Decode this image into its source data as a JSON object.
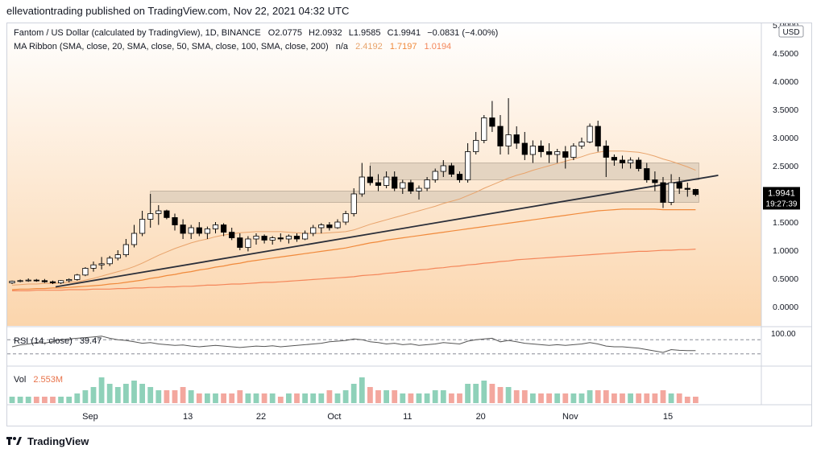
{
  "header": {
    "published": "ellevationtrading published on TradingView.com, Nov 22, 2021 04:32 UTC"
  },
  "legend": {
    "symbol_line": "Fantom / US Dollar (calculated by TradingView), 1D, BINANCE",
    "ohlc": [
      {
        "k": "O",
        "v": "2.0775"
      },
      {
        "k": "H",
        "v": "2.0932"
      },
      {
        "k": "L",
        "v": "1.9585"
      },
      {
        "k": "C",
        "v": "1.9941"
      }
    ],
    "change": "−0.0831 (−4.00%)",
    "ma_label": "MA Ribbon (SMA, close, 20, SMA, close, 50, SMA, close, 100, SMA, close, 200)",
    "ma_na": "n/a",
    "ma_values": [
      "2.4192",
      "1.7197",
      "1.0194"
    ],
    "rsi_label": "RSI (14, close)",
    "rsi_value": "39.47",
    "vol_label": "Vol",
    "vol_value": "2.553M"
  },
  "price_axis": {
    "currency": "USD",
    "ticks": [
      "5.0000",
      "4.5000",
      "4.0000",
      "3.5000",
      "3.0000",
      "2.5000",
      "2.0000",
      "1.5000",
      "1.0000",
      "0.5000",
      "0.0000"
    ],
    "last_price": "1.9941",
    "countdown": "19:27:39"
  },
  "rsi_axis": {
    "tick": "100.00"
  },
  "time_axis": {
    "labels": [
      "Sep",
      "13",
      "22",
      "Oct",
      "11",
      "20",
      "Nov",
      "15"
    ]
  },
  "footer": {
    "brand": "TradingView"
  },
  "colors": {
    "background_gradient_top": "#ffffff",
    "background_gradient_bottom": "#fbd5ac",
    "candle_up": "#ffffff",
    "candle_down": "#000000",
    "zone": "#d9cbb8",
    "trendline": "#2a2e39",
    "ma20": "#e8a36b",
    "ma50": "#f08a3c",
    "ma200": "#f4865a",
    "vol_up": "#8fd1b9",
    "vol_down": "#f3a79e",
    "price_label_bg": "#000000"
  },
  "chart_data": {
    "type": "candlestick",
    "ylim": [
      0,
      5
    ],
    "start_date": "2021-08-23",
    "end_date": "2021-11-22",
    "candles": [
      [
        0.42,
        0.46,
        0.4,
        0.45
      ],
      [
        0.45,
        0.48,
        0.43,
        0.46
      ],
      [
        0.46,
        0.5,
        0.44,
        0.47
      ],
      [
        0.47,
        0.49,
        0.44,
        0.46
      ],
      [
        0.46,
        0.49,
        0.42,
        0.44
      ],
      [
        0.44,
        0.46,
        0.4,
        0.42
      ],
      [
        0.42,
        0.47,
        0.4,
        0.46
      ],
      [
        0.46,
        0.5,
        0.43,
        0.48
      ],
      [
        0.48,
        0.58,
        0.46,
        0.56
      ],
      [
        0.56,
        0.7,
        0.54,
        0.68
      ],
      [
        0.68,
        0.8,
        0.62,
        0.74
      ],
      [
        0.74,
        0.88,
        0.66,
        0.76
      ],
      [
        0.76,
        0.9,
        0.72,
        0.86
      ],
      [
        0.86,
        1.0,
        0.82,
        0.92
      ],
      [
        0.92,
        1.2,
        0.88,
        1.1
      ],
      [
        1.1,
        1.45,
        1.05,
        1.3
      ],
      [
        1.3,
        1.7,
        1.25,
        1.55
      ],
      [
        1.55,
        2.0,
        1.4,
        1.65
      ],
      [
        1.65,
        1.8,
        1.45,
        1.7
      ],
      [
        1.7,
        1.72,
        1.55,
        1.58
      ],
      [
        1.58,
        1.65,
        1.35,
        1.45
      ],
      [
        1.45,
        1.55,
        1.2,
        1.3
      ],
      [
        1.3,
        1.45,
        1.2,
        1.4
      ],
      [
        1.4,
        1.5,
        1.25,
        1.3
      ],
      [
        1.3,
        1.42,
        1.2,
        1.38
      ],
      [
        1.38,
        1.5,
        1.3,
        1.45
      ],
      [
        1.45,
        1.48,
        1.25,
        1.32
      ],
      [
        1.32,
        1.4,
        1.18,
        1.22
      ],
      [
        1.22,
        1.3,
        1.0,
        1.05
      ],
      [
        1.05,
        1.25,
        0.98,
        1.2
      ],
      [
        1.2,
        1.3,
        1.1,
        1.25
      ],
      [
        1.25,
        1.28,
        1.12,
        1.18
      ],
      [
        1.18,
        1.25,
        1.1,
        1.22
      ],
      [
        1.22,
        1.3,
        1.15,
        1.2
      ],
      [
        1.2,
        1.28,
        1.12,
        1.25
      ],
      [
        1.25,
        1.3,
        1.15,
        1.2
      ],
      [
        1.2,
        1.35,
        1.18,
        1.3
      ],
      [
        1.3,
        1.45,
        1.25,
        1.4
      ],
      [
        1.4,
        1.48,
        1.3,
        1.45
      ],
      [
        1.45,
        1.5,
        1.35,
        1.4
      ],
      [
        1.4,
        1.55,
        1.38,
        1.5
      ],
      [
        1.5,
        1.7,
        1.45,
        1.65
      ],
      [
        1.65,
        2.1,
        1.6,
        2.0
      ],
      [
        2.0,
        2.55,
        1.95,
        2.3
      ],
      [
        2.3,
        2.5,
        2.15,
        2.2
      ],
      [
        2.2,
        2.35,
        2.05,
        2.15
      ],
      [
        2.15,
        2.4,
        2.1,
        2.3
      ],
      [
        2.3,
        2.4,
        2.05,
        2.1
      ],
      [
        2.1,
        2.25,
        2.0,
        2.2
      ],
      [
        2.2,
        2.25,
        2.0,
        2.05
      ],
      [
        2.05,
        2.15,
        1.9,
        2.1
      ],
      [
        2.1,
        2.3,
        2.05,
        2.25
      ],
      [
        2.25,
        2.45,
        2.2,
        2.4
      ],
      [
        2.4,
        2.6,
        2.3,
        2.5
      ],
      [
        2.5,
        2.55,
        2.3,
        2.35
      ],
      [
        2.35,
        2.4,
        2.2,
        2.25
      ],
      [
        2.25,
        2.9,
        2.2,
        2.75
      ],
      [
        2.75,
        3.1,
        2.7,
        2.95
      ],
      [
        2.95,
        3.4,
        2.9,
        3.35
      ],
      [
        3.35,
        3.65,
        3.1,
        3.2
      ],
      [
        3.2,
        3.4,
        2.7,
        2.85
      ],
      [
        2.85,
        3.7,
        2.7,
        3.05
      ],
      [
        3.05,
        3.2,
        2.8,
        2.9
      ],
      [
        2.9,
        3.1,
        2.6,
        2.7
      ],
      [
        2.7,
        2.95,
        2.55,
        2.85
      ],
      [
        2.85,
        2.95,
        2.65,
        2.75
      ],
      [
        2.75,
        2.9,
        2.55,
        2.7
      ],
      [
        2.7,
        2.8,
        2.55,
        2.75
      ],
      [
        2.75,
        2.85,
        2.45,
        2.65
      ],
      [
        2.65,
        2.9,
        2.6,
        2.85
      ],
      [
        2.85,
        3.0,
        2.8,
        2.92
      ],
      [
        2.92,
        3.25,
        2.9,
        3.2
      ],
      [
        3.2,
        3.3,
        2.75,
        2.85
      ],
      [
        2.85,
        2.95,
        2.3,
        2.65
      ],
      [
        2.65,
        2.7,
        2.5,
        2.6
      ],
      [
        2.6,
        2.68,
        2.45,
        2.55
      ],
      [
        2.55,
        2.65,
        2.45,
        2.6
      ],
      [
        2.6,
        2.65,
        2.4,
        2.45
      ],
      [
        2.45,
        2.55,
        2.2,
        2.25
      ],
      [
        2.25,
        2.4,
        2.05,
        2.2
      ],
      [
        2.2,
        2.3,
        1.75,
        1.85
      ],
      [
        1.85,
        2.35,
        1.8,
        2.2
      ],
      [
        2.2,
        2.3,
        2.0,
        2.1
      ],
      [
        2.1,
        2.2,
        1.95,
        2.08
      ],
      [
        2.08,
        2.09,
        1.96,
        1.99
      ]
    ],
    "volume": [
      2,
      2,
      2,
      2,
      2,
      2,
      2,
      2,
      3,
      4,
      5,
      8,
      6,
      5,
      6,
      7,
      6,
      5,
      4,
      4,
      4,
      5,
      4,
      3,
      3,
      3,
      3,
      3,
      4,
      3,
      3,
      3,
      3,
      2,
      3,
      3,
      3,
      3,
      3,
      4,
      3,
      4,
      6,
      8,
      5,
      4,
      4,
      4,
      3,
      3,
      3,
      3,
      4,
      4,
      3,
      3,
      6,
      6,
      7,
      6,
      5,
      5,
      4,
      4,
      3,
      3,
      3,
      3,
      3,
      3,
      3,
      4,
      4,
      4,
      3,
      3,
      3,
      3,
      3,
      3,
      4,
      3,
      3,
      2,
      2
    ],
    "ma20": [
      0.38,
      0.39,
      0.4,
      0.4,
      0.41,
      0.41,
      0.42,
      0.43,
      0.44,
      0.47,
      0.5,
      0.54,
      0.58,
      0.62,
      0.66,
      0.71,
      0.77,
      0.84,
      0.91,
      0.97,
      1.03,
      1.08,
      1.13,
      1.17,
      1.2,
      1.24,
      1.27,
      1.29,
      1.31,
      1.32,
      1.33,
      1.33,
      1.33,
      1.33,
      1.32,
      1.31,
      1.3,
      1.3,
      1.3,
      1.31,
      1.32,
      1.33,
      1.36,
      1.41,
      1.46,
      1.5,
      1.54,
      1.58,
      1.62,
      1.66,
      1.7,
      1.74,
      1.78,
      1.83,
      1.87,
      1.91,
      1.97,
      2.03,
      2.1,
      2.16,
      2.22,
      2.28,
      2.33,
      2.37,
      2.42,
      2.46,
      2.5,
      2.54,
      2.58,
      2.62,
      2.66,
      2.71,
      2.74,
      2.76,
      2.76,
      2.76,
      2.75,
      2.74,
      2.71,
      2.67,
      2.62,
      2.58,
      2.53,
      2.48,
      2.42
    ],
    "ma50": [
      0.3,
      0.31,
      0.31,
      0.32,
      0.32,
      0.33,
      0.33,
      0.34,
      0.35,
      0.36,
      0.37,
      0.38,
      0.4,
      0.41,
      0.43,
      0.45,
      0.47,
      0.5,
      0.52,
      0.55,
      0.57,
      0.6,
      0.62,
      0.65,
      0.67,
      0.7,
      0.72,
      0.75,
      0.77,
      0.8,
      0.82,
      0.84,
      0.86,
      0.88,
      0.9,
      0.92,
      0.94,
      0.96,
      0.98,
      1.0,
      1.02,
      1.04,
      1.07,
      1.1,
      1.13,
      1.15,
      1.18,
      1.2,
      1.22,
      1.24,
      1.26,
      1.28,
      1.3,
      1.32,
      1.34,
      1.36,
      1.38,
      1.4,
      1.42,
      1.44,
      1.46,
      1.48,
      1.5,
      1.52,
      1.54,
      1.56,
      1.58,
      1.6,
      1.62,
      1.64,
      1.66,
      1.68,
      1.7,
      1.71,
      1.72,
      1.73,
      1.73,
      1.73,
      1.73,
      1.73,
      1.72,
      1.72,
      1.72,
      1.72,
      1.72
    ],
    "ma200": [
      0.28,
      0.28,
      0.28,
      0.29,
      0.29,
      0.29,
      0.29,
      0.3,
      0.3,
      0.3,
      0.31,
      0.31,
      0.31,
      0.32,
      0.32,
      0.33,
      0.33,
      0.34,
      0.34,
      0.35,
      0.35,
      0.36,
      0.36,
      0.37,
      0.38,
      0.38,
      0.39,
      0.4,
      0.4,
      0.41,
      0.42,
      0.43,
      0.43,
      0.44,
      0.45,
      0.46,
      0.47,
      0.48,
      0.49,
      0.5,
      0.51,
      0.52,
      0.53,
      0.55,
      0.56,
      0.57,
      0.59,
      0.6,
      0.62,
      0.63,
      0.65,
      0.66,
      0.68,
      0.69,
      0.71,
      0.72,
      0.74,
      0.75,
      0.77,
      0.78,
      0.8,
      0.81,
      0.83,
      0.84,
      0.85,
      0.86,
      0.87,
      0.88,
      0.89,
      0.9,
      0.91,
      0.92,
      0.93,
      0.94,
      0.95,
      0.96,
      0.97,
      0.98,
      0.98,
      0.99,
      1.0,
      1.0,
      1.01,
      1.01,
      1.02
    ],
    "rsi": [
      50,
      55,
      58,
      62,
      60,
      65,
      70,
      72,
      74,
      76,
      78,
      80,
      74,
      70,
      68,
      64,
      60,
      62,
      58,
      56,
      54,
      55,
      52,
      50,
      52,
      54,
      52,
      50,
      48,
      50,
      52,
      51,
      53,
      50,
      52,
      54,
      56,
      58,
      60,
      64,
      66,
      68,
      72,
      70,
      64,
      62,
      58,
      60,
      56,
      58,
      54,
      56,
      58,
      62,
      60,
      58,
      66,
      70,
      72,
      74,
      64,
      68,
      64,
      60,
      58,
      56,
      54,
      56,
      54,
      56,
      58,
      62,
      58,
      52,
      50,
      50,
      48,
      46,
      42,
      38,
      34,
      42,
      40,
      39,
      39
    ],
    "zones": [
      {
        "low": 1.85,
        "high": 2.05
      },
      {
        "low": 2.25,
        "high": 2.55
      }
    ],
    "trendline": [
      [
        0.4,
        0.35
      ],
      [
        85,
        2.33
      ]
    ],
    "rsi_levels": [
      70,
      30
    ]
  }
}
